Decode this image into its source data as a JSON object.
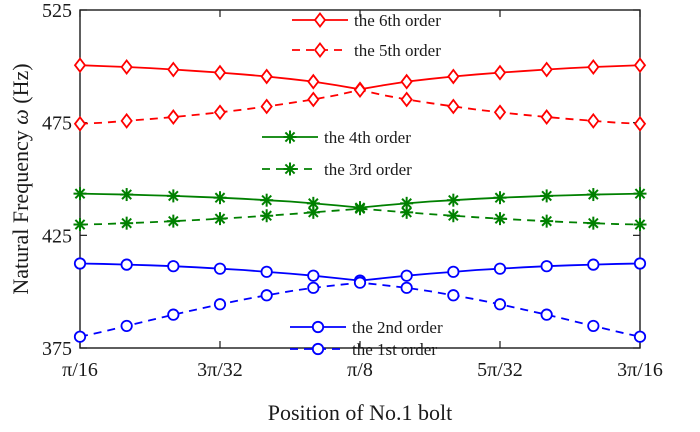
{
  "chart_data": {
    "type": "line",
    "xlabel": "Position of No.1 bolt",
    "ylabel_parts": [
      "Natural Frequency ",
      "ω",
      " (Hz)"
    ],
    "ylim": [
      375,
      525
    ],
    "yticks": [
      375,
      425,
      475,
      525
    ],
    "xlim": [
      0.19635,
      0.58905
    ],
    "xticks": [
      {
        "value": 0.19635,
        "label": "π/16"
      },
      {
        "value": 0.29452,
        "label": "3π/32"
      },
      {
        "value": 0.3927,
        "label": "π/8"
      },
      {
        "value": 0.49087,
        "label": "5π/32"
      },
      {
        "value": 0.58905,
        "label": "3π/16"
      }
    ],
    "x": [
      0.19635,
      0.21271,
      0.22907,
      0.24544,
      0.2618,
      0.27816,
      0.29452,
      0.31089,
      0.32725,
      0.34361,
      0.35997,
      0.37634,
      0.3927,
      0.40906,
      0.42542,
      0.44179,
      0.45815,
      0.47451,
      0.49087,
      0.50724,
      0.5236,
      0.53996,
      0.55632,
      0.57269,
      0.58905
    ],
    "series": [
      {
        "name": "the  6th order",
        "color": "#ff0000",
        "dash": false,
        "marker": "diamond",
        "marker_every": 2,
        "values": [
          500.5,
          500.1,
          499.7,
          499.2,
          498.6,
          497.9,
          497.2,
          496.4,
          495.5,
          494.4,
          493.2,
          491.6,
          489.8,
          491.6,
          493.2,
          494.4,
          495.5,
          496.4,
          497.2,
          497.9,
          498.6,
          499.2,
          499.7,
          500.1,
          500.5
        ]
      },
      {
        "name": "the 5th order",
        "color": "#ff0000",
        "dash": true,
        "marker": "diamond",
        "marker_every": 2,
        "values": [
          474.5,
          475.0,
          475.8,
          476.6,
          477.5,
          478.5,
          479.6,
          480.8,
          482.2,
          483.7,
          485.3,
          487.2,
          489.5,
          487.2,
          485.3,
          483.7,
          482.2,
          480.8,
          479.6,
          478.5,
          477.5,
          476.6,
          475.8,
          475.0,
          474.5
        ]
      },
      {
        "name": "the 4th order",
        "color": "#008000",
        "dash": false,
        "marker": "asterisk",
        "marker_every": 2,
        "values": [
          443.5,
          443.3,
          443.1,
          442.8,
          442.5,
          442.1,
          441.7,
          441.2,
          440.6,
          440.0,
          439.2,
          438.3,
          437.3,
          438.3,
          439.2,
          440.0,
          440.6,
          441.2,
          441.7,
          442.1,
          442.5,
          442.8,
          443.1,
          443.3,
          443.5
        ]
      },
      {
        "name": "the 3rd order",
        "color": "#008000",
        "dash": true,
        "marker": "asterisk",
        "marker_every": 2,
        "values": [
          429.8,
          430.0,
          430.4,
          430.8,
          431.3,
          431.8,
          432.4,
          433.0,
          433.7,
          434.4,
          435.2,
          436.0,
          436.8,
          436.0,
          435.2,
          434.4,
          433.7,
          433.0,
          432.4,
          431.8,
          431.3,
          430.8,
          430.4,
          430.0,
          429.8
        ]
      },
      {
        "name": "the 2nd order",
        "color": "#0000ff",
        "dash": false,
        "marker": "circle",
        "marker_every": 2,
        "values": [
          412.5,
          412.3,
          412.0,
          411.7,
          411.3,
          410.8,
          410.2,
          409.6,
          408.8,
          408.0,
          407.1,
          406.0,
          404.9,
          406.0,
          407.1,
          408.0,
          408.8,
          409.6,
          410.2,
          410.8,
          411.3,
          411.7,
          412.0,
          412.3,
          412.5
        ]
      },
      {
        "name": "the 1st order",
        "color": "#0000ff",
        "dash": true,
        "marker": "circle",
        "marker_every": 2,
        "values": [
          380.0,
          382.3,
          384.8,
          387.3,
          389.8,
          392.1,
          394.4,
          396.5,
          398.4,
          400.2,
          401.7,
          402.9,
          404.0,
          402.9,
          401.7,
          400.2,
          398.4,
          396.5,
          394.4,
          392.1,
          389.8,
          387.3,
          384.8,
          382.3,
          380.0
        ]
      }
    ],
    "legends": [
      {
        "series": [
          0,
          1
        ],
        "placement": "top-center"
      },
      {
        "series": [
          2,
          3
        ],
        "placement": "upper-middle"
      },
      {
        "series": [
          4,
          5
        ],
        "placement": "bottom-center"
      }
    ],
    "grid": false
  }
}
